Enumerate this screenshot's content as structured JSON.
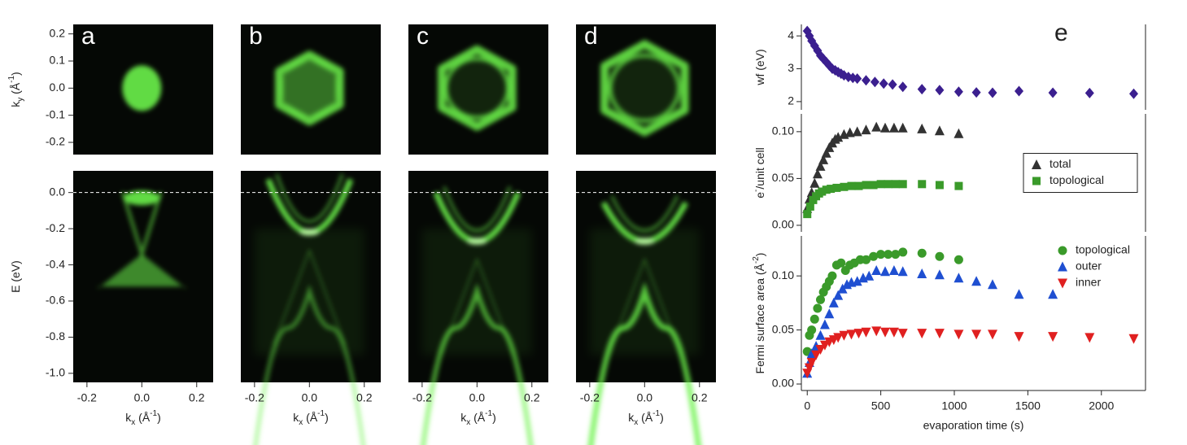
{
  "chart_data": [
    {
      "type": "arpes",
      "panels": [
        "a",
        "b",
        "c",
        "d"
      ],
      "ky": {
        "label": [
          {
            "text": "k"
          },
          {
            "text": "y",
            "shift": "sub"
          },
          {
            "text": " (Å"
          },
          {
            "text": "-1",
            "shift": "super"
          },
          {
            "text": ")"
          }
        ],
        "ylim": [
          -0.245,
          0.235
        ],
        "yticks": [
          0.2,
          0.1,
          {
            "value": 0,
            "label": "0.0"
          },
          -0.1,
          -0.2
        ]
      },
      "E": {
        "label": [
          {
            "text": "E (eV)"
          }
        ],
        "ylim": [
          -1.05,
          0.12
        ],
        "yticks": [
          {
            "value": 0,
            "label": "0.0"
          },
          -0.2,
          -0.4,
          -0.6,
          -0.8,
          {
            "value": -1,
            "label": "-1.0"
          }
        ]
      },
      "kx": {
        "label": [
          {
            "text": "k"
          },
          {
            "text": "x",
            "shift": "sub"
          },
          {
            "text": " (Å"
          },
          {
            "text": "-1",
            "shift": "super"
          },
          {
            "text": ")"
          }
        ],
        "xlim": [
          -0.25,
          0.26
        ],
        "xticks": [
          -0.2,
          {
            "value": 0,
            "label": "0.0"
          },
          0.2
        ]
      }
    },
    {
      "type": "scatter",
      "label": "e",
      "ylabel": [
        {
          "text": "wf (eV)"
        }
      ],
      "xlim": [
        -40,
        2300
      ],
      "ylim": [
        1.75,
        4.35
      ],
      "yticks": [
        2,
        3,
        4
      ],
      "series": [
        {
          "color": "#3b1f8f",
          "marker": "diamond",
          "x": [
            0,
            15,
            30,
            50,
            70,
            90,
            110,
            130,
            150,
            170,
            190,
            210,
            230,
            250,
            280,
            310,
            340,
            400,
            460,
            520,
            580,
            650,
            780,
            900,
            1030,
            1150,
            1260,
            1440,
            1670,
            1920,
            2220
          ],
          "values": [
            4.15,
            4.0,
            3.85,
            3.7,
            3.55,
            3.4,
            3.3,
            3.2,
            3.1,
            3.0,
            2.95,
            2.9,
            2.85,
            2.8,
            2.75,
            2.72,
            2.7,
            2.65,
            2.6,
            2.55,
            2.52,
            2.45,
            2.38,
            2.35,
            2.3,
            2.28,
            2.27,
            2.32,
            2.27,
            2.26,
            2.24
          ]
        }
      ]
    },
    {
      "type": "scatter",
      "ylabel": [
        {
          "text": "e"
        },
        {
          "text": "-",
          "shift": "super"
        },
        {
          "text": "/unit cell"
        }
      ],
      "xlim": [
        -40,
        2300
      ],
      "ylim": [
        -0.007,
        0.119
      ],
      "yticks": [
        {
          "value": 0,
          "label": "0.00"
        },
        0.05,
        {
          "value": 0.1,
          "label": "0.10"
        }
      ],
      "legend": "right",
      "legend_box": true,
      "series": [
        {
          "name": "total",
          "color": "#333333",
          "marker": "triangle",
          "x": [
            0,
            15,
            30,
            50,
            70,
            90,
            110,
            130,
            150,
            170,
            190,
            210,
            250,
            290,
            340,
            400,
            470,
            530,
            590,
            650,
            780,
            900,
            1030
          ],
          "values": [
            0.018,
            0.028,
            0.035,
            0.045,
            0.055,
            0.063,
            0.07,
            0.077,
            0.083,
            0.088,
            0.092,
            0.094,
            0.097,
            0.099,
            0.1,
            0.102,
            0.105,
            0.104,
            0.104,
            0.104,
            0.103,
            0.101,
            0.098
          ]
        },
        {
          "name": "topological",
          "color": "#3a9a2a",
          "marker": "square",
          "x": [
            0,
            20,
            40,
            60,
            80,
            100,
            130,
            160,
            200,
            250,
            300,
            350,
            400,
            450,
            500,
            550,
            600,
            650,
            780,
            900,
            1030
          ],
          "values": [
            0.012,
            0.02,
            0.027,
            0.031,
            0.034,
            0.036,
            0.038,
            0.039,
            0.04,
            0.041,
            0.042,
            0.042,
            0.043,
            0.043,
            0.044,
            0.044,
            0.044,
            0.044,
            0.044,
            0.043,
            0.042
          ]
        }
      ]
    },
    {
      "type": "scatter",
      "ylabel": [
        {
          "text": "Fermi surface area (Å"
        },
        {
          "text": "-2",
          "shift": "super"
        },
        {
          "text": ")"
        }
      ],
      "xlim": [
        -40,
        2300
      ],
      "ylim": [
        -0.006,
        0.137
      ],
      "yticks": [
        {
          "value": 0,
          "label": "0.00"
        },
        0.05,
        {
          "value": 0.1,
          "label": "0.10"
        }
      ],
      "xticks": [
        0,
        500,
        1000,
        1500,
        2000
      ],
      "xlabel": "evaporation time (s)",
      "legend": "top right",
      "legend_box": false,
      "series": [
        {
          "name": "topological",
          "color": "#3a9a2a",
          "marker": "circle",
          "x": [
            0,
            15,
            30,
            50,
            70,
            90,
            110,
            130,
            150,
            170,
            200,
            230,
            260,
            290,
            320,
            360,
            400,
            450,
            500,
            550,
            600,
            650,
            780,
            900,
            1030
          ],
          "values": [
            0.03,
            0.045,
            0.05,
            0.06,
            0.07,
            0.078,
            0.085,
            0.09,
            0.095,
            0.1,
            0.11,
            0.112,
            0.105,
            0.11,
            0.112,
            0.115,
            0.115,
            0.118,
            0.12,
            0.12,
            0.12,
            0.122,
            0.121,
            0.118,
            0.115
          ]
        },
        {
          "name": "outer",
          "color": "#1f4fd1",
          "marker": "triangle",
          "x": [
            0,
            15,
            30,
            60,
            90,
            120,
            150,
            180,
            210,
            240,
            270,
            300,
            340,
            380,
            420,
            470,
            530,
            590,
            650,
            780,
            900,
            1030,
            1150,
            1260,
            1440,
            1670
          ],
          "values": [
            0.01,
            0.02,
            0.028,
            0.035,
            0.045,
            0.055,
            0.065,
            0.075,
            0.082,
            0.088,
            0.092,
            0.094,
            0.095,
            0.098,
            0.1,
            0.105,
            0.104,
            0.105,
            0.104,
            0.102,
            0.101,
            0.098,
            0.095,
            0.092,
            0.083,
            0.083
          ]
        },
        {
          "name": "inner",
          "color": "#e02020",
          "marker": "triangle-down",
          "x": [
            0,
            15,
            30,
            60,
            90,
            120,
            150,
            180,
            210,
            250,
            300,
            350,
            400,
            470,
            530,
            590,
            650,
            780,
            900,
            1030,
            1150,
            1260,
            1440,
            1670,
            1920,
            2220
          ],
          "values": [
            0.01,
            0.015,
            0.02,
            0.027,
            0.032,
            0.036,
            0.039,
            0.041,
            0.043,
            0.045,
            0.046,
            0.047,
            0.048,
            0.049,
            0.048,
            0.048,
            0.047,
            0.047,
            0.047,
            0.046,
            0.046,
            0.046,
            0.044,
            0.044,
            0.043,
            0.042
          ]
        }
      ]
    }
  ]
}
